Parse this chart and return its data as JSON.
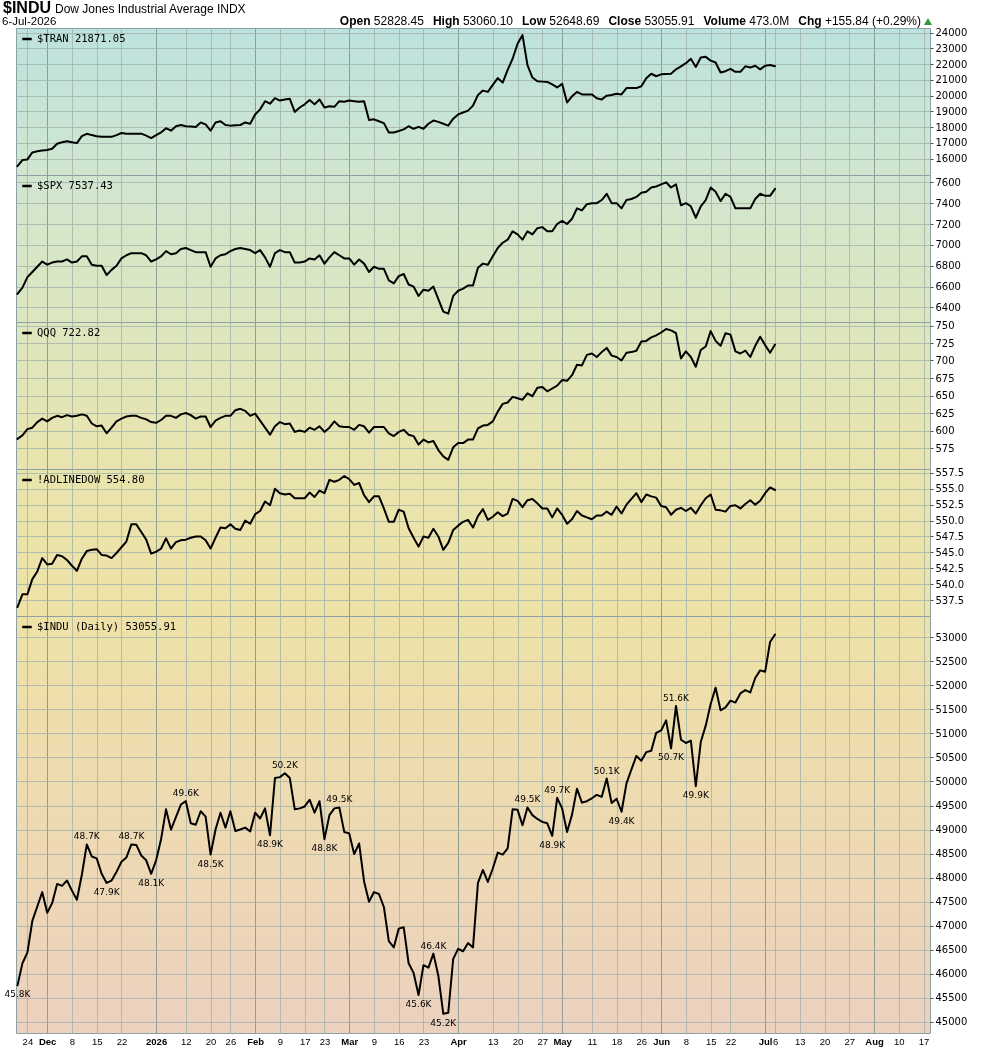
{
  "chart_data": [
    {
      "type": "other",
      "title": "$INDU",
      "subtitle": "Dow Jones Industrial Average INDX",
      "annotations": [
        "6-Jul-2026",
        "Open 52828.45",
        "High 53060.10",
        "Low 52648.69",
        "Close 53055.91",
        "Volume 473.0M",
        "Chg +155.84 (+0.29%)"
      ]
    },
    {
      "type": "line",
      "categories": [
        null,
        null,
        null,
        null,
        null,
        null,
        null,
        null,
        null,
        null,
        null,
        null,
        null,
        null,
        null,
        null,
        null,
        null,
        null,
        null,
        null,
        null,
        null,
        null,
        null,
        null,
        null,
        null,
        null,
        null,
        null,
        null,
        null,
        null,
        null,
        null,
        null,
        null,
        null,
        null,
        null,
        null,
        null,
        null,
        null,
        null,
        null,
        null,
        null,
        null,
        null,
        null,
        null,
        null,
        null,
        null,
        null,
        null,
        null,
        null,
        null,
        null,
        null,
        null,
        null,
        null,
        null,
        null,
        null,
        null,
        null,
        null,
        null,
        null,
        null,
        null,
        null,
        null,
        null,
        null,
        null,
        null,
        null,
        null,
        null,
        null,
        null,
        null,
        null,
        null,
        null,
        null,
        null,
        null,
        null,
        null,
        null,
        null,
        null,
        null,
        null,
        null,
        null,
        null,
        null,
        null,
        null,
        null,
        null,
        null,
        null,
        null,
        null,
        null,
        null,
        null,
        null,
        null,
        null,
        null,
        null,
        null,
        null,
        null,
        null,
        null,
        null,
        null,
        null,
        null,
        null,
        null,
        null,
        null,
        null,
        null,
        null,
        null,
        null,
        null,
        null,
        null,
        null,
        null,
        null,
        null,
        null,
        null,
        null,
        null,
        null,
        null,
        null,
        null,
        null,
        null,
        null,
        null,
        null,
        null,
        null,
        null,
        null,
        null,
        null,
        null,
        null,
        null,
        null,
        null,
        null,
        null,
        null,
        null,
        null,
        null,
        null,
        null,
        null,
        null,
        null,
        null,
        null,
        null,
        null
      ],
      "series": [
        {
          "name": "$TRAN 21871.05",
          "color": "#000000",
          "values": [
            15530,
            15920,
            15960,
            16400,
            16480,
            16520,
            16560,
            16630,
            16950,
            17050,
            17110,
            17050,
            16990,
            17430,
            17580,
            17500,
            17430,
            17390,
            17390,
            17390,
            17500,
            17630,
            17590,
            17590,
            17590,
            17590,
            17470,
            17310,
            17500,
            17670,
            17940,
            17780,
            18060,
            18140,
            18060,
            18040,
            18020,
            18300,
            18180,
            17780,
            18300,
            18380,
            18140,
            18100,
            18120,
            18140,
            18300,
            18220,
            18810,
            19130,
            19650,
            19490,
            19840,
            19690,
            19750,
            19800,
            18970,
            19250,
            19450,
            19730,
            19450,
            19760,
            19250,
            19330,
            19290,
            19650,
            19610,
            19690,
            19650,
            19610,
            19650,
            18460,
            18500,
            18380,
            18260,
            17670,
            17670,
            17760,
            17860,
            18060,
            17900,
            18020,
            17900,
            18220,
            18420,
            18340,
            18220,
            18100,
            18540,
            18810,
            18930,
            19050,
            19370,
            20040,
            20320,
            20240,
            20680,
            21110,
            20830,
            21630,
            22340,
            23290,
            23840,
            21940,
            21150,
            20910,
            20890,
            20870,
            20720,
            20520,
            20750,
            19570,
            19960,
            20240,
            20080,
            20080,
            20080,
            19840,
            19760,
            20000,
            20040,
            20120,
            20080,
            20480,
            20480,
            20480,
            20600,
            21110,
            21390,
            21230,
            21350,
            21370,
            21390,
            21670,
            21860,
            22060,
            22340,
            21820,
            22420,
            22460,
            22220,
            22100,
            21470,
            21550,
            21700,
            21510,
            21510,
            21860,
            21780,
            21900,
            21670,
            21900,
            21940,
            21871.05,
            null,
            null,
            null,
            null,
            null,
            null,
            null,
            null,
            null,
            null,
            null,
            null,
            null,
            null,
            null,
            null,
            null,
            null,
            null,
            null,
            null,
            null,
            null,
            null,
            null,
            null,
            null,
            null,
            null,
            null,
            null
          ]
        }
      ],
      "ylim": [
        14970,
        24290
      ],
      "yticks": [
        16000,
        17000,
        18000,
        19000,
        20000,
        21000,
        22000,
        23000,
        24000
      ],
      "grid": true,
      "legend": "top left",
      "tick_labels": "y"
    },
    {
      "type": "line",
      "categories": [
        null,
        null,
        null,
        null,
        null,
        null,
        null,
        null,
        null,
        null,
        null,
        null,
        null,
        null,
        null,
        null,
        null,
        null,
        null,
        null,
        null,
        null,
        null,
        null,
        null,
        null,
        null,
        null,
        null,
        null,
        null,
        null,
        null,
        null,
        null,
        null,
        null,
        null,
        null,
        null,
        null,
        null,
        null,
        null,
        null,
        null,
        null,
        null,
        null,
        null,
        null,
        null,
        null,
        null,
        null,
        null,
        null,
        null,
        null,
        null,
        null,
        null,
        null,
        null,
        null,
        null,
        null,
        null,
        null,
        null,
        null,
        null,
        null,
        null,
        null,
        null,
        null,
        null,
        null,
        null,
        null,
        null,
        null,
        null,
        null,
        null,
        null,
        null,
        null,
        null,
        null,
        null,
        null,
        null,
        null,
        null,
        null,
        null,
        null,
        null,
        null,
        null,
        null,
        null,
        null,
        null,
        null,
        null,
        null,
        null,
        null,
        null,
        null,
        null,
        null,
        null,
        null,
        null,
        null,
        null,
        null,
        null,
        null,
        null,
        null,
        null,
        null,
        null,
        null,
        null,
        null,
        null,
        null,
        null,
        null,
        null,
        null,
        null,
        null,
        null,
        null,
        null,
        null,
        null,
        null,
        null,
        null,
        null,
        null,
        null,
        null,
        null,
        null,
        null,
        null,
        null,
        null,
        null,
        null,
        null,
        null,
        null,
        null,
        null,
        null,
        null,
        null,
        null,
        null,
        null,
        null,
        null,
        null,
        null,
        null,
        null,
        null,
        null,
        null,
        null,
        null,
        null,
        null,
        null,
        null
      ],
      "series": [
        {
          "name": "$SPX 7537.43",
          "color": "#000000",
          "values": [
            6530,
            6590,
            6690,
            6740,
            6790,
            6840,
            6810,
            6830,
            6840,
            6840,
            6860,
            6830,
            6840,
            6890,
            6890,
            6810,
            6800,
            6800,
            6710,
            6760,
            6800,
            6870,
            6900,
            6920,
            6920,
            6920,
            6900,
            6840,
            6860,
            6890,
            6940,
            6910,
            6920,
            6960,
            6970,
            6950,
            6930,
            6930,
            6930,
            6790,
            6870,
            6900,
            6910,
            6940,
            6960,
            6970,
            6960,
            6950,
            6920,
            6950,
            6880,
            6790,
            6920,
            6950,
            6930,
            6930,
            6830,
            6830,
            6840,
            6870,
            6860,
            6900,
            6820,
            6880,
            6930,
            6900,
            6870,
            6870,
            6810,
            6860,
            6820,
            6740,
            6790,
            6770,
            6770,
            6660,
            6630,
            6700,
            6720,
            6620,
            6600,
            6510,
            6570,
            6560,
            6600,
            6480,
            6360,
            6340,
            6510,
            6560,
            6580,
            6610,
            6610,
            6780,
            6820,
            6810,
            6890,
            6970,
            7020,
            7050,
            7130,
            7100,
            7050,
            7130,
            7100,
            7160,
            7170,
            7130,
            7130,
            7200,
            7230,
            7200,
            7250,
            7350,
            7330,
            7390,
            7400,
            7400,
            7430,
            7490,
            7400,
            7400,
            7350,
            7430,
            7440,
            7460,
            7500,
            7510,
            7550,
            7560,
            7580,
            7600,
            7550,
            7580,
            7380,
            7400,
            7370,
            7260,
            7370,
            7430,
            7550,
            7510,
            7420,
            7490,
            7460,
            7350,
            7350,
            7350,
            7350,
            7440,
            7490,
            7470,
            7470,
            7537.43,
            null,
            null,
            null,
            null,
            null,
            null,
            null,
            null,
            null,
            null,
            null,
            null,
            null,
            null,
            null,
            null,
            null,
            null,
            null,
            null,
            null,
            null,
            null,
            null,
            null,
            null,
            null,
            null,
            null,
            null,
            null
          ]
        }
      ],
      "ylim": [
        6260,
        7670
      ],
      "yticks": [
        6400,
        6600,
        6800,
        7000,
        7200,
        7400,
        7600
      ],
      "grid": true,
      "legend": "top left",
      "tick_labels": "y"
    },
    {
      "type": "line",
      "categories": [
        null,
        null,
        null,
        null,
        null,
        null,
        null,
        null,
        null,
        null,
        null,
        null,
        null,
        null,
        null,
        null,
        null,
        null,
        null,
        null,
        null,
        null,
        null,
        null,
        null,
        null,
        null,
        null,
        null,
        null,
        null,
        null,
        null,
        null,
        null,
        null,
        null,
        null,
        null,
        null,
        null,
        null,
        null,
        null,
        null,
        null,
        null,
        null,
        null,
        null,
        null,
        null,
        null,
        null,
        null,
        null,
        null,
        null,
        null,
        null,
        null,
        null,
        null,
        null,
        null,
        null,
        null,
        null,
        null,
        null,
        null,
        null,
        null,
        null,
        null,
        null,
        null,
        null,
        null,
        null,
        null,
        null,
        null,
        null,
        null,
        null,
        null,
        null,
        null,
        null,
        null,
        null,
        null,
        null,
        null,
        null,
        null,
        null,
        null,
        null,
        null,
        null,
        null,
        null,
        null,
        null,
        null,
        null,
        null,
        null,
        null,
        null,
        null,
        null,
        null,
        null,
        null,
        null,
        null,
        null,
        null,
        null,
        null,
        null,
        null,
        null,
        null,
        null,
        null,
        null,
        null,
        null,
        null,
        null,
        null,
        null,
        null,
        null,
        null,
        null,
        null,
        null,
        null,
        null,
        null,
        null,
        null,
        null,
        null,
        null,
        null,
        null,
        null,
        null,
        null,
        null,
        null,
        null,
        null,
        null,
        null,
        null,
        null,
        null,
        null,
        null,
        null,
        null,
        null,
        null,
        null,
        null,
        null,
        null,
        null,
        null,
        null,
        null,
        null,
        null,
        null,
        null,
        null,
        null,
        null
      ],
      "series": [
        {
          "name": "QQQ 722.82",
          "color": "#000000",
          "values": [
            588,
            593,
            602,
            604,
            612,
            617,
            613,
            618,
            621,
            619,
            622,
            620,
            621,
            623,
            621,
            610,
            606,
            607,
            596,
            604,
            613,
            617,
            620,
            621,
            621,
            618,
            616,
            612,
            611,
            615,
            621,
            621,
            618,
            623,
            625,
            622,
            617,
            620,
            620,
            605,
            614,
            618,
            621,
            621,
            629,
            631,
            628,
            621,
            624,
            614,
            604,
            594,
            606,
            612,
            609,
            610,
            598,
            600,
            598,
            604,
            601,
            606,
            598,
            604,
            613,
            606,
            605,
            605,
            601,
            608,
            606,
            597,
            605,
            605,
            605,
            596,
            592,
            598,
            601,
            594,
            592,
            580,
            587,
            583,
            585,
            572,
            563,
            558,
            576,
            582,
            582,
            587,
            587,
            603,
            607,
            608,
            613,
            627,
            638,
            640,
            648,
            646,
            644,
            653,
            649,
            661,
            662,
            656,
            660,
            664,
            672,
            671,
            679,
            694,
            693,
            708,
            710,
            705,
            712,
            718,
            707,
            705,
            700,
            711,
            712,
            714,
            727,
            728,
            733,
            736,
            740,
            745,
            743,
            739,
            703,
            713,
            705,
            691,
            715,
            720,
            742,
            728,
            721,
            739,
            737,
            713,
            710,
            714,
            705,
            721,
            734,
            722,
            711,
            722.82,
            null,
            null,
            null,
            null,
            null,
            null,
            null,
            null,
            null,
            null,
            null,
            null,
            null,
            null,
            null,
            null,
            null,
            null,
            null,
            null,
            null,
            null,
            null,
            null,
            null,
            null,
            null,
            null,
            null,
            null,
            null
          ]
        }
      ],
      "ylim": [
        545,
        755
      ],
      "yticks": [
        575,
        600,
        625,
        650,
        675,
        700,
        725,
        750
      ],
      "grid": true,
      "legend": "top left",
      "tick_labels": "y"
    },
    {
      "type": "line",
      "categories": [
        null,
        null,
        null,
        null,
        null,
        null,
        null,
        null,
        null,
        null,
        null,
        null,
        null,
        null,
        null,
        null,
        null,
        null,
        null,
        null,
        null,
        null,
        null,
        null,
        null,
        null,
        null,
        null,
        null,
        null,
        null,
        null,
        null,
        null,
        null,
        null,
        null,
        null,
        null,
        null,
        null,
        null,
        null,
        null,
        null,
        null,
        null,
        null,
        null,
        null,
        null,
        null,
        null,
        null,
        null,
        null,
        null,
        null,
        null,
        null,
        null,
        null,
        null,
        null,
        null,
        null,
        null,
        null,
        null,
        null,
        null,
        null,
        null,
        null,
        null,
        null,
        null,
        null,
        null,
        null,
        null,
        null,
        null,
        null,
        null,
        null,
        null,
        null,
        null,
        null,
        null,
        null,
        null,
        null,
        null,
        null,
        null,
        null,
        null,
        null,
        null,
        null,
        null,
        null,
        null,
        null,
        null,
        null,
        null,
        null,
        null,
        null,
        null,
        null,
        null,
        null,
        null,
        null,
        null,
        null,
        null,
        null,
        null,
        null,
        null,
        null,
        null,
        null,
        null,
        null,
        null,
        null,
        null,
        null,
        null,
        null,
        null,
        null,
        null,
        null,
        null,
        null,
        null,
        null,
        null,
        null,
        null,
        null,
        null,
        null,
        null,
        null,
        null,
        null,
        null,
        null,
        null,
        null,
        null,
        null,
        null,
        null,
        null,
        null,
        null,
        null,
        null,
        null,
        null,
        null,
        null,
        null,
        null,
        null,
        null,
        null,
        null,
        null,
        null,
        null,
        null,
        null,
        null,
        null,
        null
      ],
      "series": [
        {
          "name": "!ADLINEDOW 554.80",
          "color": "#000000",
          "values": [
            536.4,
            538.4,
            538.4,
            540.8,
            542.0,
            544.1,
            543.1,
            543.2,
            544.6,
            544.4,
            543.8,
            542.9,
            542.1,
            544.0,
            545.2,
            545.4,
            545.5,
            544.6,
            544.5,
            544.1,
            544.9,
            545.8,
            546.7,
            549.4,
            549.4,
            548.2,
            547.0,
            544.8,
            545.1,
            545.6,
            547.2,
            545.6,
            546.6,
            546.9,
            547.0,
            547.3,
            547.5,
            547.5,
            546.9,
            545.6,
            547.3,
            548.9,
            548.8,
            549.4,
            548.7,
            548.5,
            550.0,
            549.5,
            551.0,
            551.5,
            553.0,
            552.4,
            555.0,
            554.3,
            554.1,
            554.2,
            553.5,
            553.5,
            553.5,
            554.4,
            553.7,
            554.7,
            554.3,
            556.4,
            556.1,
            556.4,
            557.0,
            556.5,
            555.6,
            555.9,
            554.0,
            552.9,
            553.8,
            553.8,
            551.9,
            549.8,
            549.8,
            551.7,
            551.4,
            548.8,
            547.3,
            545.9,
            547.5,
            547.3,
            548.7,
            547.5,
            545.4,
            546.5,
            548.5,
            549.2,
            549.8,
            550.1,
            548.9,
            550.7,
            551.8,
            550.1,
            550.6,
            551.3,
            550.7,
            551.1,
            553.4,
            553.1,
            552.1,
            553.2,
            553.4,
            552.7,
            551.9,
            551.9,
            550.5,
            551.9,
            550.9,
            549.5,
            550.2,
            551.5,
            550.8,
            550.5,
            550.2,
            550.8,
            550.8,
            551.4,
            550.9,
            552.2,
            551.1,
            552.5,
            553.4,
            554.3,
            552.9,
            554.1,
            553.8,
            553.6,
            552.3,
            552.1,
            550.9,
            551.7,
            552.0,
            551.5,
            552.0,
            551.1,
            552.4,
            553.5,
            554.1,
            551.7,
            551.6,
            551.4,
            552.3,
            552.4,
            551.9,
            552.6,
            553.2,
            552.5,
            553.1,
            554.3,
            555.2,
            554.8,
            null,
            null,
            null,
            null,
            null,
            null,
            null,
            null,
            null,
            null,
            null,
            null,
            null,
            null,
            null,
            null,
            null,
            null,
            null,
            null,
            null,
            null,
            null,
            null,
            null,
            null,
            null,
            null,
            null,
            null,
            null
          ]
        }
      ],
      "ylim": [
        535,
        558.1
      ],
      "yticks": [
        537.5,
        {
          "value": 540,
          "label": "540.0"
        },
        542.5,
        {
          "value": 545,
          "label": "545.0"
        },
        547.5,
        {
          "value": 550,
          "label": "550.0"
        },
        552.5,
        {
          "value": 555,
          "label": "555.0"
        },
        557.5
      ],
      "grid": true,
      "legend": "top left",
      "tick_labels": "y"
    },
    {
      "type": "line",
      "categories": [
        null,
        null,
        "24",
        null,
        null,
        null,
        "Dec",
        null,
        null,
        null,
        null,
        "8",
        null,
        null,
        null,
        null,
        "15",
        null,
        null,
        null,
        null,
        "22",
        null,
        null,
        null,
        null,
        null,
        null,
        "2026",
        null,
        null,
        null,
        null,
        null,
        "12",
        null,
        null,
        null,
        null,
        "20",
        null,
        null,
        null,
        "26",
        null,
        null,
        null,
        null,
        "Feb",
        null,
        null,
        null,
        null,
        "9",
        null,
        null,
        null,
        null,
        "17",
        null,
        null,
        null,
        "23",
        null,
        null,
        null,
        null,
        "Mar",
        null,
        null,
        null,
        null,
        "9",
        null,
        null,
        null,
        null,
        "16",
        null,
        null,
        null,
        null,
        "23",
        null,
        null,
        null,
        null,
        null,
        null,
        "Apr",
        null,
        null,
        null,
        null,
        null,
        null,
        "13",
        null,
        null,
        null,
        null,
        "20",
        null,
        null,
        null,
        null,
        "27",
        null,
        null,
        null,
        "May",
        null,
        null,
        null,
        null,
        null,
        "11",
        null,
        null,
        null,
        null,
        "18",
        null,
        null,
        null,
        null,
        "26",
        null,
        null,
        null,
        "Jun",
        null,
        null,
        null,
        null,
        "8",
        null,
        null,
        null,
        null,
        "15",
        null,
        null,
        null,
        "22",
        null,
        null,
        null,
        null,
        null,
        null,
        "Jul",
        null,
        "6",
        null,
        null,
        null,
        null,
        "13",
        null,
        null,
        null,
        null,
        "20",
        null,
        null,
        null,
        null,
        "27",
        null,
        null,
        null,
        null,
        "Aug",
        null,
        null,
        null,
        null,
        "10",
        null,
        null,
        null,
        null,
        "17",
        null
      ],
      "series": [
        {
          "name": "$INDU (Daily) 53055.91",
          "color": "#000000",
          "values": [
            45760,
            46220,
            46440,
            47100,
            47400,
            47700,
            47270,
            47470,
            47870,
            47830,
            47940,
            47730,
            47540,
            48060,
            48690,
            48440,
            48400,
            48080,
            47890,
            47940,
            48120,
            48330,
            48420,
            48690,
            48680,
            48460,
            48360,
            48080,
            48360,
            48800,
            49420,
            49000,
            49260,
            49520,
            49590,
            49130,
            49100,
            49380,
            49270,
            48480,
            49000,
            49350,
            49040,
            49380,
            48970,
            49000,
            49040,
            48960,
            49350,
            49230,
            49440,
            48880,
            50070,
            50090,
            50170,
            50070,
            49420,
            49440,
            49480,
            49620,
            49350,
            49590,
            48800,
            49300,
            49440,
            49460,
            48950,
            48920,
            48490,
            48710,
            47920,
            47500,
            47700,
            47660,
            47390,
            46680,
            46550,
            46940,
            46970,
            46220,
            46020,
            45560,
            46180,
            46130,
            46420,
            45960,
            45170,
            45190,
            46310,
            46520,
            46470,
            46640,
            46550,
            47890,
            48160,
            47910,
            48190,
            48520,
            48480,
            48610,
            49420,
            49410,
            49090,
            49460,
            49300,
            49220,
            49160,
            49130,
            48870,
            49660,
            49440,
            48950,
            49310,
            49850,
            49560,
            49590,
            49650,
            49720,
            49680,
            50060,
            49550,
            49640,
            49370,
            49960,
            50250,
            50530,
            50430,
            50610,
            50640,
            51010,
            51060,
            51270,
            50690,
            51570,
            50870,
            50800,
            50850,
            49900,
            50820,
            51160,
            51610,
            51950,
            51480,
            51540,
            51680,
            51640,
            51830,
            51900,
            51850,
            52150,
            52310,
            52280,
            52900,
            53055.91,
            null,
            null,
            null,
            null,
            null,
            null,
            null,
            null,
            null,
            null,
            null,
            null,
            null,
            null,
            null,
            null,
            null,
            null,
            null,
            null,
            null,
            null,
            null,
            null,
            null,
            null,
            null,
            null,
            null,
            null,
            null
          ],
          "value_labels": [
            "45.8K",
            null,
            null,
            null,
            null,
            null,
            null,
            null,
            null,
            null,
            null,
            null,
            null,
            null,
            "48.7K",
            null,
            null,
            null,
            "47.9K",
            null,
            null,
            null,
            null,
            "48.7K",
            null,
            null,
            null,
            "48.1K",
            null,
            null,
            null,
            null,
            null,
            null,
            "49.6K",
            null,
            null,
            null,
            null,
            "48.5K",
            null,
            null,
            null,
            null,
            null,
            null,
            null,
            null,
            null,
            null,
            null,
            "48.9K",
            null,
            null,
            "50.2K",
            null,
            null,
            null,
            null,
            null,
            null,
            null,
            "48.8K",
            null,
            null,
            "49.5K",
            null,
            null,
            null,
            null,
            null,
            null,
            null,
            null,
            null,
            null,
            null,
            null,
            null,
            null,
            null,
            "45.6K",
            null,
            null,
            "46.4K",
            null,
            "45.2K",
            null,
            null,
            null,
            null,
            null,
            null,
            null,
            null,
            null,
            null,
            null,
            null,
            null,
            null,
            null,
            null,
            "49.5K",
            null,
            null,
            null,
            null,
            "48.9K",
            "49.7K",
            null,
            null,
            null,
            null,
            null,
            null,
            null,
            null,
            null,
            "50.1K",
            null,
            null,
            "49.4K",
            null,
            null,
            null,
            null,
            null,
            null,
            null,
            null,
            null,
            "50.7K",
            "51.6K",
            null,
            null,
            null,
            "49.9K",
            null,
            null,
            null,
            null,
            null,
            null,
            null,
            null,
            null,
            null,
            null,
            null,
            null,
            null,
            null,
            null,
            null,
            null,
            null,
            null,
            null,
            null,
            null,
            null,
            null,
            null,
            null,
            null,
            null,
            null,
            null,
            null,
            null,
            null,
            null,
            null,
            null,
            null,
            null,
            null,
            null,
            null,
            null,
            null,
            null,
            null,
            null
          ]
        }
      ],
      "ylim": [
        44770,
        53440
      ],
      "yticks": [
        45000,
        45500,
        46000,
        46500,
        47000,
        47500,
        48000,
        48500,
        49000,
        49500,
        50000,
        50500,
        51000,
        51500,
        52000,
        52500,
        53000
      ],
      "grid": true,
      "legend": "top left"
    }
  ]
}
